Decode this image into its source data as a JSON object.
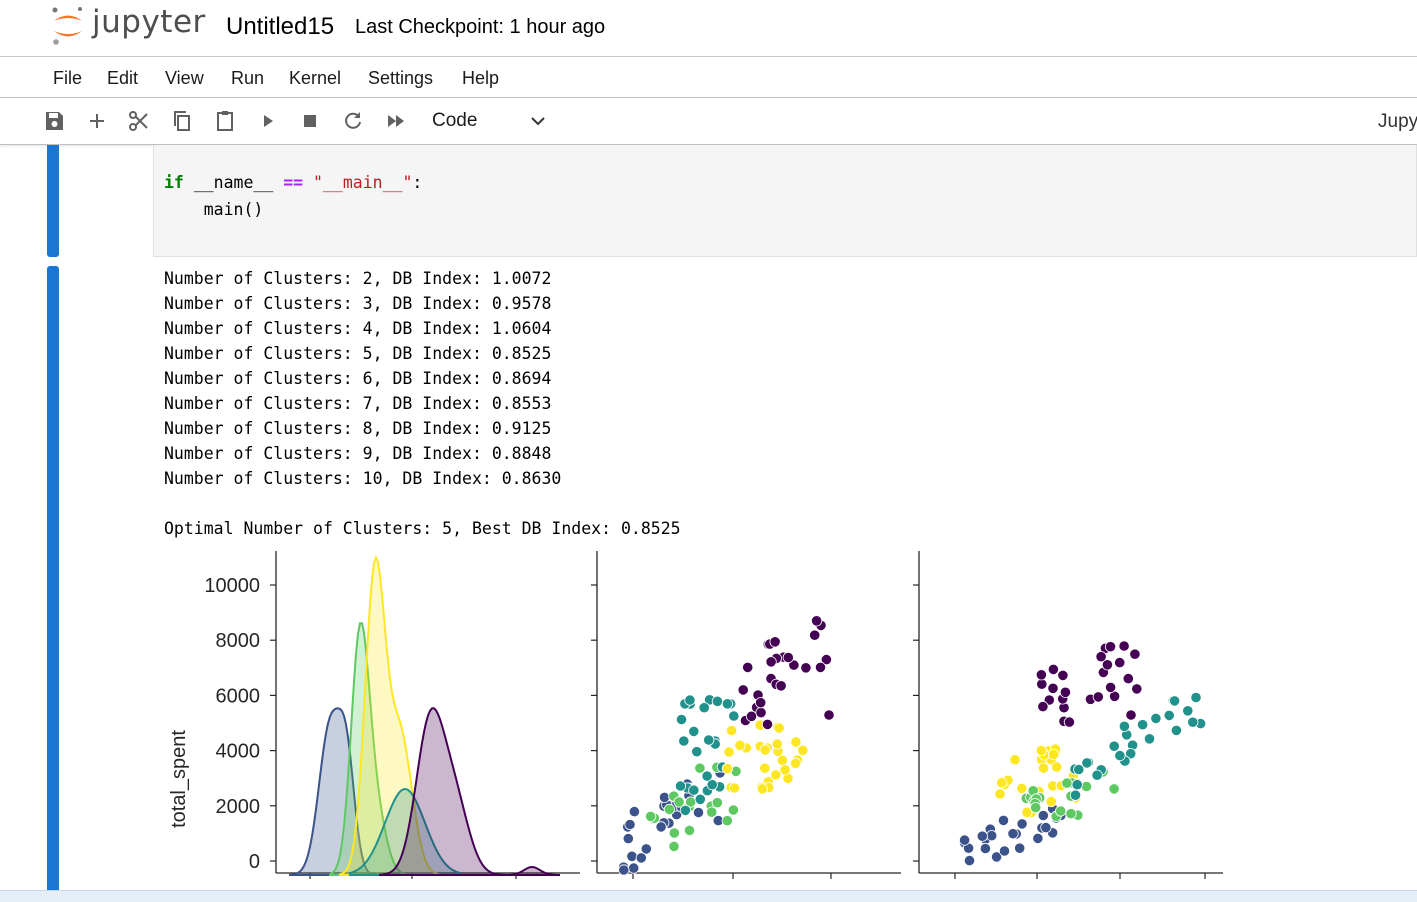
{
  "header": {
    "app_name": "jupyter",
    "notebook_title": "Untitled15",
    "checkpoint": "Last Checkpoint: 1 hour ago"
  },
  "menu": [
    "File",
    "Edit",
    "View",
    "Run",
    "Kernel",
    "Settings",
    "Help"
  ],
  "toolbar": {
    "icons": [
      "save-icon",
      "add-icon",
      "cut-icon",
      "copy-icon",
      "paste-icon",
      "run-icon",
      "stop-icon",
      "restart-icon",
      "fast-forward-icon"
    ],
    "cell_type": "Code",
    "kernel_label": "Jupy"
  },
  "code_cell": {
    "tokens": {
      "kw_if": "if",
      "name": "__name__",
      "eq": "==",
      "main_str": "\"__main__\"",
      "colon": ":",
      "call": "    main()"
    }
  },
  "output": {
    "lines": [
      "Number of Clusters: 2, DB Index: 1.0072",
      "Number of Clusters: 3, DB Index: 0.9578",
      "Number of Clusters: 4, DB Index: 1.0604",
      "Number of Clusters: 5, DB Index: 0.8525",
      "Number of Clusters: 6, DB Index: 0.8694",
      "Number of Clusters: 7, DB Index: 0.8553",
      "Number of Clusters: 8, DB Index: 0.9125",
      "Number of Clusters: 9, DB Index: 0.8848",
      "Number of Clusters: 10, DB Index: 0.8630"
    ],
    "summary": "Optimal Number of Clusters: 5, Best DB Index: 0.8525"
  },
  "plot": {
    "ylabel": "total_spent",
    "y_ticks": [
      "0",
      "2000",
      "4000",
      "6000",
      "8000",
      "10000"
    ],
    "cluster_colors": [
      "#440154",
      "#3b528b",
      "#21918c",
      "#5ec962",
      "#fde725"
    ]
  },
  "chart_data": {
    "type": "scatter",
    "ylabel": "total_spent",
    "ylim": [
      -400,
      11200
    ],
    "panels": [
      {
        "type": "kde",
        "clusters": [
          {
            "cluster": 0,
            "color": "#440154",
            "peak_y": 5100
          },
          {
            "cluster": 1,
            "color": "#3b528b",
            "peak_y": 4900
          },
          {
            "cluster": 2,
            "color": "#21918c",
            "peak_y": 3000
          },
          {
            "cluster": 3,
            "color": "#5ec962",
            "peak_y": 8600
          },
          {
            "cluster": 4,
            "color": "#fde725",
            "peak_y": 10500
          }
        ]
      },
      {
        "type": "scatter",
        "approx_points": 120
      },
      {
        "type": "scatter",
        "approx_points": 120
      }
    ]
  }
}
